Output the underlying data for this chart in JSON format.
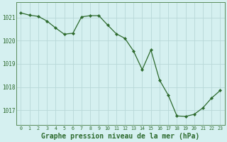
{
  "hours": [
    0,
    1,
    2,
    3,
    4,
    5,
    6,
    7,
    8,
    9,
    10,
    11,
    12,
    13,
    14,
    15,
    16,
    17,
    18,
    19,
    20,
    21,
    22,
    23
  ],
  "pressure": [
    1021.2,
    1021.1,
    1021.05,
    1020.85,
    1020.55,
    1020.28,
    1020.32,
    1021.03,
    1021.08,
    1021.08,
    1020.68,
    1020.3,
    1020.1,
    1019.55,
    1018.75,
    1019.6,
    1018.3,
    1017.65,
    1016.75,
    1016.73,
    1016.82,
    1017.1,
    1017.52,
    1017.85
  ],
  "line_color": "#2d6a2d",
  "marker": "D",
  "marker_size": 2.2,
  "bg_color": "#d5f0f0",
  "grid_color": "#b8d8d8",
  "title": "Graphe pression niveau de la mer (hPa)",
  "ylabel_ticks": [
    1017,
    1018,
    1019,
    1020,
    1021
  ],
  "ylim": [
    1016.35,
    1021.65
  ],
  "xlim": [
    -0.5,
    23.5
  ],
  "title_fontsize": 7.0,
  "tick_color": "#2d6a2d",
  "spine_color": "#5a8a5a",
  "linewidth": 0.9
}
